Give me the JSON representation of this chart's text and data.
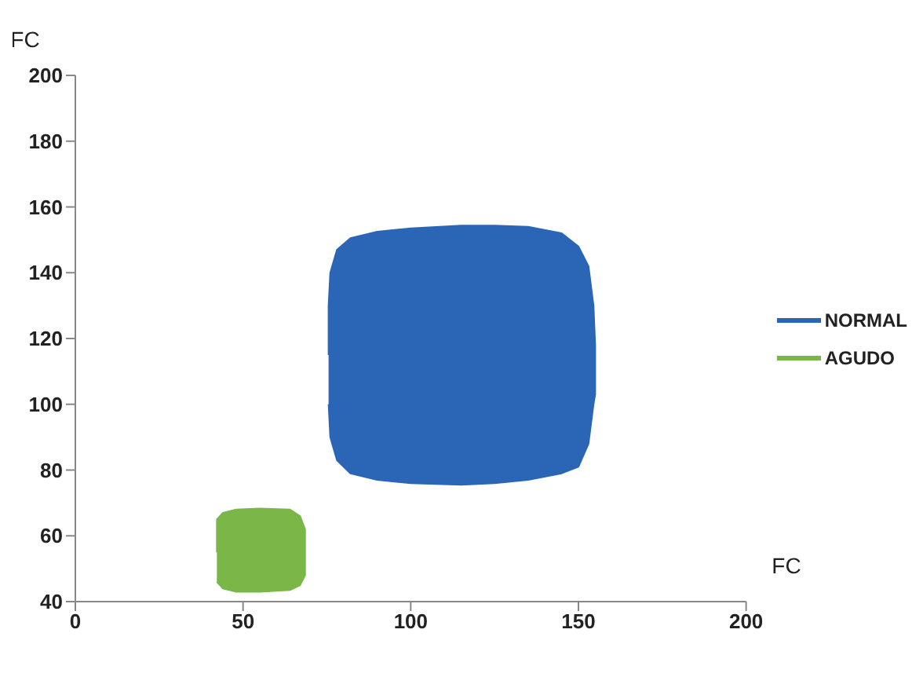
{
  "chart_data": {
    "type": "area",
    "xlabel": "FC",
    "ylabel": "FC",
    "xlim": [
      0,
      200
    ],
    "xticks": [
      0,
      50,
      100,
      150,
      200
    ],
    "ylim": [
      40,
      200
    ],
    "yticks": [
      40,
      60,
      80,
      100,
      120,
      140,
      160,
      180,
      200
    ],
    "grid": false,
    "legend": "right",
    "series": [
      {
        "name": "NORMAL",
        "color": "#2a66b5",
        "x": [
          75.5,
          75.5,
          76,
          78,
          82,
          90,
          100,
          115,
          125,
          135,
          145,
          150,
          153,
          154.5,
          155,
          155,
          154.5,
          153,
          150,
          145,
          135,
          125,
          115,
          100,
          90,
          82,
          78,
          76,
          75.5
        ],
        "values": [
          115,
          130,
          140,
          147,
          150.5,
          152.5,
          153.5,
          154.3,
          154.3,
          154,
          152,
          148,
          142,
          130,
          118,
          103,
          100,
          88,
          81,
          79,
          77,
          76,
          75.5,
          76,
          77,
          79,
          83,
          90,
          100
        ]
      },
      {
        "name": "AGUDO",
        "color": "#7ab648",
        "x": [
          42.2,
          42.2,
          44,
          48,
          55,
          64,
          67,
          68.5,
          68.5,
          67,
          64,
          55,
          48,
          44,
          42.2
        ],
        "values": [
          55,
          65,
          67,
          68,
          68.3,
          68,
          66,
          62,
          48,
          45,
          43.5,
          43,
          43,
          44,
          46
        ]
      }
    ]
  }
}
